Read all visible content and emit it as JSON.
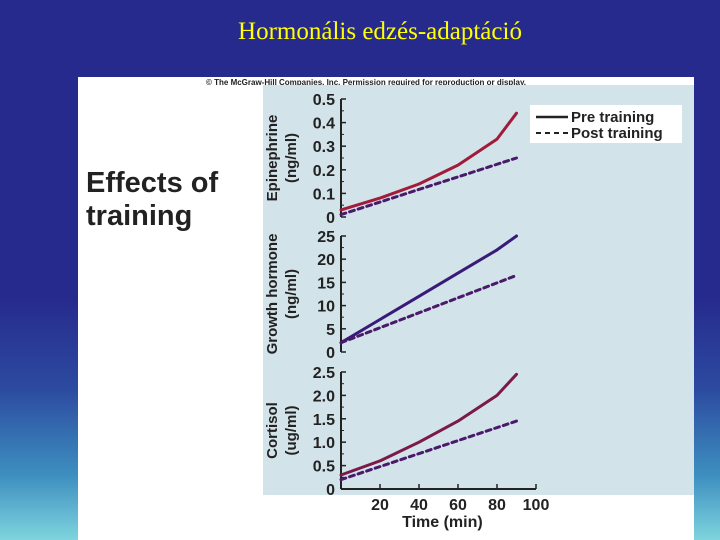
{
  "slide_title": "Hormonális edzés-adaptáció",
  "credit": "© The McGraw-Hill Companies, Inc. Permission required for reproduction or display.",
  "figure_label": "Effects of\ntraining",
  "colors": {
    "panel_bg": "#d3e3ea",
    "pre_epinephrine": "#a01c3a",
    "pre_growth": "#3a1a78",
    "pre_cortisol": "#7a1a4a",
    "post": "#4a1a6a",
    "axis": "#222222"
  },
  "chart_data": [
    {
      "type": "line",
      "ylabel": "Epinephrine",
      "yunit": "(ng/ml)",
      "ylim": [
        0,
        0.5
      ],
      "yticks": [
        "0",
        "0.1",
        "0.2",
        "0.3",
        "0.4",
        "0.5"
      ],
      "series": [
        {
          "name": "Pre training",
          "style": "solid",
          "x": [
            0,
            20,
            40,
            60,
            80,
            90
          ],
          "y": [
            0.03,
            0.08,
            0.14,
            0.22,
            0.33,
            0.44
          ]
        },
        {
          "name": "Post training",
          "style": "dashed",
          "x": [
            0,
            90
          ],
          "y": [
            0.01,
            0.25
          ]
        }
      ]
    },
    {
      "type": "line",
      "ylabel": "Growth hormone",
      "yunit": "(ng/ml)",
      "ylim": [
        0,
        25
      ],
      "yticks": [
        "0",
        "5",
        "10",
        "15",
        "20",
        "25"
      ],
      "series": [
        {
          "name": "Pre training",
          "style": "solid",
          "x": [
            0,
            20,
            40,
            60,
            80,
            90
          ],
          "y": [
            2,
            7,
            12,
            17,
            22,
            25
          ]
        },
        {
          "name": "Post training",
          "style": "dashed",
          "x": [
            0,
            90
          ],
          "y": [
            2,
            16.5
          ]
        }
      ]
    },
    {
      "type": "line",
      "ylabel": "Cortisol",
      "yunit": "(ug/ml)",
      "ylim": [
        0,
        2.5
      ],
      "yticks": [
        "0",
        "0.5",
        "1.0",
        "1.5",
        "2.0",
        "2.5"
      ],
      "xlabel": "Time (min)",
      "xticks": [
        20,
        40,
        60,
        80,
        100
      ],
      "xlim": [
        0,
        100
      ],
      "series": [
        {
          "name": "Pre training",
          "style": "solid",
          "x": [
            0,
            20,
            40,
            60,
            80,
            90
          ],
          "y": [
            0.3,
            0.6,
            1.0,
            1.45,
            2.0,
            2.45
          ]
        },
        {
          "name": "Post training",
          "style": "dashed",
          "x": [
            0,
            90
          ],
          "y": [
            0.2,
            1.45
          ]
        }
      ]
    }
  ],
  "legend": {
    "pre": "Pre training",
    "post": "Post training",
    "placement": "top-right"
  }
}
